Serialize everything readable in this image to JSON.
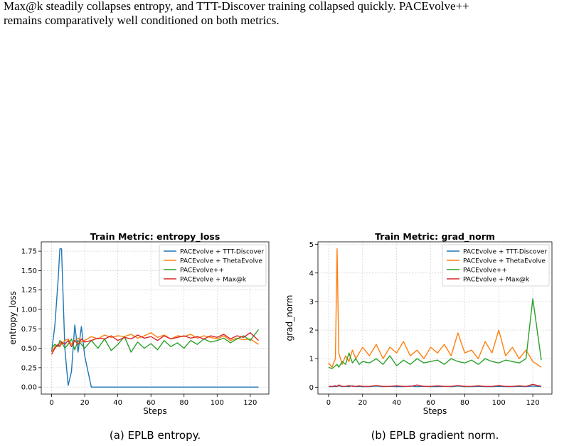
{
  "paragraph": {
    "lines": [
      "Max@k steadily collapses entropy, and TTT-Discover training collapsed quickly.  PACEvolve++",
      "remains comparatively well conditioned on both metrics."
    ]
  },
  "chart_data": [
    {
      "type": "line",
      "title": "Train Metric: entropy_loss",
      "x_label": "Steps",
      "y_label": "entropy_loss",
      "caption": "(a) EPLB entropy.",
      "x": [
        0,
        2,
        4,
        5,
        6,
        8,
        10,
        12,
        14,
        16,
        18,
        20,
        24,
        28,
        32,
        36,
        40,
        44,
        48,
        52,
        56,
        60,
        64,
        68,
        72,
        76,
        80,
        84,
        88,
        92,
        96,
        100,
        104,
        108,
        112,
        116,
        120,
        125
      ],
      "xlim": [
        -6.25,
        131.25
      ],
      "xticks": [
        0,
        20,
        40,
        60,
        80,
        100,
        120
      ],
      "ylim": [
        -0.09,
        1.87
      ],
      "yticks": [
        {
          "value": 0,
          "label": "0.00"
        },
        {
          "value": 0.25,
          "label": "0.25"
        },
        {
          "value": 0.5,
          "label": "0.50"
        },
        {
          "value": 0.75,
          "label": "0.75"
        },
        {
          "value": 1,
          "label": "1.00"
        },
        {
          "value": 1.25,
          "label": "1.25"
        },
        {
          "value": 1.5,
          "label": "1.50"
        },
        {
          "value": 1.75,
          "label": "1.75"
        }
      ],
      "grid": true,
      "legend": "upper right",
      "series": [
        {
          "name": "PACEvolve + TTT-Discover",
          "color": "#1f77b4",
          "values": [
            0.45,
            0.8,
            1.4,
            1.78,
            1.78,
            0.5,
            0.02,
            0.2,
            0.8,
            0.45,
            0.78,
            0.4,
            0,
            0,
            0,
            0,
            0,
            0,
            0,
            0,
            0,
            0,
            0,
            0,
            0,
            0,
            0,
            0,
            0,
            0,
            0,
            0,
            0,
            0,
            0,
            0,
            0,
            0
          ]
        },
        {
          "name": "PACEvolve + ThetaEvolve",
          "color": "#ff7f0e",
          "values": [
            0.45,
            0.52,
            0.55,
            0.58,
            0.55,
            0.6,
            0.62,
            0.55,
            0.6,
            0.63,
            0.58,
            0.6,
            0.65,
            0.62,
            0.67,
            0.64,
            0.66,
            0.65,
            0.68,
            0.63,
            0.66,
            0.7,
            0.64,
            0.67,
            0.62,
            0.66,
            0.65,
            0.68,
            0.63,
            0.66,
            0.64,
            0.62,
            0.66,
            0.6,
            0.63,
            0.61,
            0.62,
            0.55
          ]
        },
        {
          "name": "PACEvolve++",
          "color": "#2ca02c",
          "values": [
            0.5,
            0.55,
            0.52,
            0.6,
            0.58,
            0.5,
            0.55,
            0.62,
            0.48,
            0.6,
            0.55,
            0.5,
            0.6,
            0.5,
            0.62,
            0.47,
            0.55,
            0.65,
            0.45,
            0.58,
            0.5,
            0.56,
            0.48,
            0.6,
            0.52,
            0.57,
            0.5,
            0.6,
            0.55,
            0.62,
            0.58,
            0.6,
            0.63,
            0.57,
            0.62,
            0.66,
            0.6,
            0.74
          ]
        },
        {
          "name": "PACEvolve + Max@k",
          "color": "#d62728",
          "values": [
            0.42,
            0.5,
            0.55,
            0.52,
            0.58,
            0.55,
            0.6,
            0.52,
            0.6,
            0.55,
            0.62,
            0.58,
            0.6,
            0.63,
            0.62,
            0.66,
            0.6,
            0.64,
            0.62,
            0.67,
            0.63,
            0.65,
            0.6,
            0.66,
            0.62,
            0.64,
            0.66,
            0.63,
            0.65,
            0.62,
            0.66,
            0.64,
            0.68,
            0.62,
            0.66,
            0.64,
            0.7,
            0.6
          ]
        }
      ]
    },
    {
      "type": "line",
      "title": "Train Metric: grad_norm",
      "x_label": "Steps",
      "y_label": "grad_norm",
      "caption": "(b) EPLB gradient norm.",
      "x": [
        0,
        2,
        4,
        5,
        6,
        8,
        10,
        12,
        14,
        16,
        18,
        20,
        24,
        28,
        32,
        36,
        40,
        44,
        48,
        52,
        56,
        60,
        64,
        68,
        72,
        76,
        80,
        84,
        88,
        92,
        96,
        100,
        104,
        108,
        112,
        116,
        120,
        125
      ],
      "xlim": [
        -6.25,
        131.25
      ],
      "xticks": [
        0,
        20,
        40,
        60,
        80,
        100,
        120
      ],
      "ylim": [
        -0.24,
        5.09
      ],
      "yticks": [
        0,
        1,
        2,
        3,
        4,
        5
      ],
      "grid": true,
      "legend": "upper right",
      "series": [
        {
          "name": "PACEvolve + TTT-Discover",
          "color": "#1f77b4",
          "values": [
            0.02,
            0.02,
            0.03,
            0.02,
            0.05,
            0.02,
            0.03,
            0.02,
            0.05,
            0.02,
            0.03,
            0.02,
            0.02,
            0.04,
            0.02,
            0.03,
            0.02,
            0.02,
            0.04,
            0.02,
            0.03,
            0.02,
            0.02,
            0.03,
            0.02,
            0.04,
            0.02,
            0.02,
            0.03,
            0.02,
            0.02,
            0.03,
            0.02,
            0.02,
            0.03,
            0.02,
            0.04,
            0.02
          ]
        },
        {
          "name": "PACEvolve + ThetaEvolve",
          "color": "#ff7f0e",
          "values": [
            0.85,
            0.7,
            1.0,
            4.85,
            1.2,
            0.8,
            1.1,
            0.9,
            1.3,
            1.0,
            1.2,
            1.4,
            1.1,
            1.5,
            1.0,
            1.4,
            1.2,
            1.6,
            1.1,
            1.3,
            1.0,
            1.4,
            1.2,
            1.5,
            1.1,
            1.9,
            1.2,
            1.3,
            1.0,
            1.6,
            1.2,
            2.0,
            1.1,
            1.4,
            1.0,
            1.3,
            0.9,
            0.7
          ]
        },
        {
          "name": "PACEvolve++",
          "color": "#2ca02c",
          "values": [
            0.7,
            0.65,
            0.75,
            0.8,
            0.7,
            0.9,
            0.8,
            1.2,
            0.85,
            1.0,
            0.8,
            0.9,
            0.85,
            1.0,
            0.8,
            1.1,
            0.75,
            0.95,
            0.8,
            1.0,
            0.85,
            0.9,
            0.95,
            0.8,
            1.0,
            0.9,
            0.85,
            0.95,
            0.8,
            1.0,
            0.9,
            0.85,
            0.95,
            0.9,
            0.85,
            1.0,
            3.1,
            0.95
          ]
        },
        {
          "name": "PACEvolve + Max@k",
          "color": "#d62728",
          "values": [
            0.03,
            0.03,
            0.05,
            0.03,
            0.08,
            0.03,
            0.03,
            0.06,
            0.03,
            0.03,
            0.05,
            0.03,
            0.03,
            0.06,
            0.03,
            0.03,
            0.05,
            0.03,
            0.03,
            0.08,
            0.03,
            0.03,
            0.05,
            0.03,
            0.03,
            0.06,
            0.03,
            0.03,
            0.05,
            0.03,
            0.03,
            0.06,
            0.03,
            0.03,
            0.05,
            0.03,
            0.1,
            0.03
          ]
        }
      ]
    }
  ]
}
